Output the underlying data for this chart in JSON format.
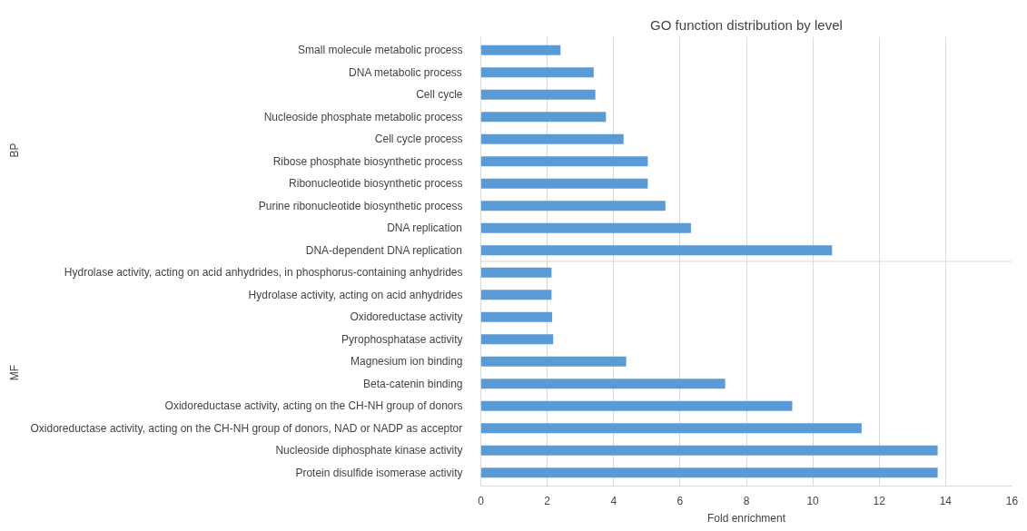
{
  "chart_data": {
    "type": "bar",
    "orientation": "horizontal",
    "title": "GO function distribution by level",
    "xlabel": "Fold enrichment",
    "categories": [
      "Small molecule metabolic process",
      "DNA metabolic process",
      "Cell cycle",
      "Nucleoside phosphate metabolic process",
      "Cell cycle process",
      "Ribose phosphate biosynthetic process",
      "Ribonucleotide biosynthetic process",
      "Purine ribonucleotide biosynthetic process",
      "DNA replication",
      "DNA-dependent DNA replication",
      "Hydrolase activity, acting on acid anhydrides, in phosphorus-containing anhydrides",
      "Hydrolase activity, acting on acid anhydrides",
      "Oxidoreductase activity",
      "Pyrophosphatase activity",
      "Magnesium ion binding",
      "Beta-catenin binding",
      "Oxidoreductase activity, acting on the CH-NH group of donors",
      "Oxidoreductase activity, acting on the CH-NH group of donors, NAD or NADP as acceptor",
      "Nucleoside diphosphate kinase activity",
      "Protein disulfide isomerase activity"
    ],
    "values": [
      2.4,
      3.4,
      3.45,
      3.77,
      4.3,
      5.03,
      5.03,
      5.56,
      6.33,
      10.58,
      2.13,
      2.13,
      2.15,
      2.18,
      4.38,
      7.36,
      9.38,
      11.47,
      13.76,
      13.76
    ],
    "color": "#5b9bd5",
    "xlim": [
      0,
      16
    ],
    "xticks": [
      0,
      2,
      4,
      6,
      8,
      10,
      12,
      14,
      16
    ],
    "grid": "x",
    "annotations": [
      "BP",
      "MF"
    ]
  }
}
